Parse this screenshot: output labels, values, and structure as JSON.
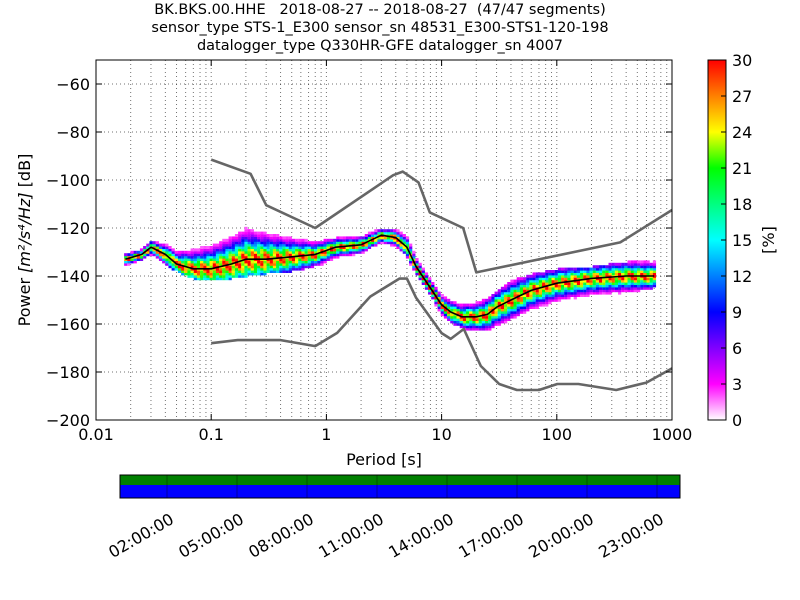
{
  "title_lines": [
    "BK.BKS.00.HHE   2018-08-27 -- 2018-08-27  (47/47 segments)",
    "sensor_type STS-1_E300 sensor_sn 48531_E300-STS1-120-198",
    "datalogger_type Q330HR-GFE datalogger_sn 4007"
  ],
  "chart_data": {
    "type": "heatmap",
    "title": "BK.BKS.00.HHE   2018-08-27 -- 2018-08-27  (47/47 segments)",
    "xlabel": "Period [s]",
    "ylabel": "Power [m²/s⁴/Hz] [dB]",
    "ylabel_prefix": "Power ",
    "ylabel_suffix": " [dB]",
    "xscale": "log",
    "xlim": [
      0.01,
      1000
    ],
    "ylim": [
      -200,
      -50
    ],
    "x_ticks": [
      0.01,
      0.1,
      1,
      10,
      100,
      1000
    ],
    "x_tick_labels": [
      "0.01",
      "0.1",
      "1",
      "10",
      "100",
      "1000"
    ],
    "y_ticks": [
      -200,
      -180,
      -160,
      -140,
      -120,
      -100,
      -80,
      -60
    ],
    "y_tick_labels": [
      "−200",
      "−180",
      "−160",
      "−140",
      "−120",
      "−100",
      "−80",
      "−60"
    ],
    "grid": true,
    "colorbar": {
      "label": "[%]",
      "range": [
        0,
        30
      ],
      "ticks": [
        0,
        3,
        6,
        9,
        12,
        15,
        18,
        21,
        24,
        27,
        30
      ],
      "colormap": [
        "#ffffff",
        "#ff00ff",
        "#8000ff",
        "#0000ff",
        "#0080ff",
        "#00ffff",
        "#00ff80",
        "#00ff00",
        "#ffff00",
        "#ff8000",
        "#ff0000"
      ]
    },
    "series": [
      {
        "name": "mode",
        "color": "#000000",
        "x": [
          0.018,
          0.025,
          0.03,
          0.04,
          0.05,
          0.07,
          0.1,
          0.15,
          0.2,
          0.3,
          0.5,
          0.8,
          1.2,
          2,
          3,
          4,
          5,
          6,
          8,
          10,
          12,
          15,
          20,
          25,
          30,
          40,
          60,
          100,
          200,
          400,
          700
        ],
        "y": [
          -133,
          -131,
          -128,
          -131,
          -135,
          -137,
          -137,
          -135,
          -133,
          -133,
          -132,
          -131,
          -128,
          -127,
          -123,
          -124,
          -128,
          -136,
          -145,
          -152,
          -155,
          -157,
          -157,
          -156,
          -153,
          -150,
          -146,
          -143,
          -141,
          -140,
          -140
        ]
      },
      {
        "name": "NHNM",
        "color": "#666666",
        "x": [
          0.1,
          0.22,
          0.3,
          0.8,
          3.8,
          4.6,
          6.3,
          7.9,
          15.4,
          20,
          354.8,
          1000
        ],
        "y": [
          -91.5,
          -97.4,
          -110.5,
          -120,
          -98,
          -96.5,
          -101,
          -113.5,
          -120,
          -138.5,
          -126,
          -112.5
        ]
      },
      {
        "name": "NLNM",
        "color": "#666666",
        "x": [
          0.1,
          0.17,
          0.4,
          0.8,
          1.24,
          2.4,
          4.3,
          5,
          6,
          10,
          12,
          15.6,
          21.9,
          31.6,
          45,
          70,
          101,
          154,
          328,
          600,
          1000
        ],
        "y": [
          -168,
          -166.7,
          -166.7,
          -169.2,
          -163.7,
          -148.6,
          -141.1,
          -141.1,
          -149,
          -163.8,
          -166.2,
          -162.1,
          -177.5,
          -185,
          -187.5,
          -187.5,
          -185,
          -185,
          -187.5,
          -184.4,
          -178.5
        ]
      }
    ],
    "density_band": {
      "x": [
        0.018,
        0.025,
        0.03,
        0.04,
        0.05,
        0.07,
        0.1,
        0.15,
        0.2,
        0.3,
        0.5,
        0.8,
        1.2,
        2,
        3,
        4,
        5,
        6,
        8,
        10,
        12,
        15,
        20,
        25,
        30,
        40,
        60,
        100,
        200,
        400,
        700
      ],
      "low": [
        -135,
        -133,
        -131,
        -134,
        -137,
        -140,
        -141,
        -140,
        -139,
        -138,
        -137,
        -135,
        -132,
        -130,
        -126,
        -127,
        -131,
        -139,
        -148,
        -155,
        -158,
        -161,
        -162,
        -162,
        -160,
        -157,
        -153,
        -150,
        -148,
        -146,
        -144
      ],
      "high": [
        -131,
        -129,
        -126,
        -127,
        -128,
        -127,
        -125,
        -121,
        -118,
        -120,
        -124,
        -126,
        -125,
        -124,
        -121,
        -121,
        -124,
        -133,
        -142,
        -148,
        -150,
        -152,
        -152,
        -150,
        -147,
        -143,
        -140,
        -138,
        -137,
        -135,
        -134
      ]
    },
    "availability_bar": {
      "tick_labels": [
        "02:00:00",
        "05:00:00",
        "08:00:00",
        "11:00:00",
        "14:00:00",
        "17:00:00",
        "20:00:00",
        "23:00:00"
      ],
      "segments_color": "#008000",
      "data_color": "#0000ff"
    }
  }
}
